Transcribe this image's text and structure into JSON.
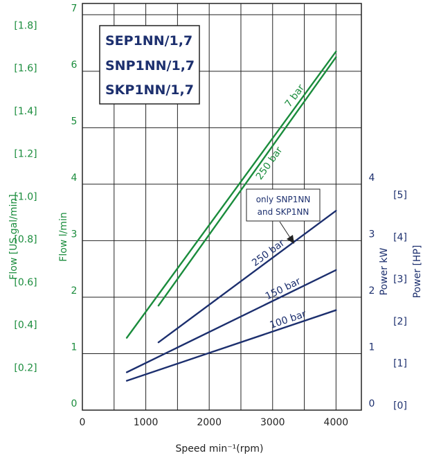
{
  "chart_data": {
    "type": "line",
    "title_lines": [
      "SEP1NN/1,7",
      "SNP1NN/1,7",
      "SKP1NN/1,7"
    ],
    "xlabel": "Speed min⁻¹(rpm)",
    "xlim": [
      0,
      4400
    ],
    "x_ticks": [
      "0",
      "1000",
      "2000",
      "3000",
      "4000"
    ],
    "flow_axis": {
      "label": "Flow  l/min",
      "ylim": [
        0,
        7.2
      ],
      "ticks": [
        "0",
        "1",
        "2",
        "3",
        "4",
        "5",
        "6",
        "7"
      ]
    },
    "flow_gal_axis": {
      "label": "Flow [US gal/min]",
      "ticks": [
        "[0.2]",
        "[0.4]",
        "[0.6]",
        "[0.8]",
        "[1.0]",
        "[1.2]",
        "[1.4]",
        "[1.6]",
        "[1.8]"
      ]
    },
    "power_axis": {
      "label": "Power  kW",
      "ylim": [
        0,
        7.2
      ],
      "ticks": [
        "0",
        "1",
        "2",
        "3",
        "4"
      ]
    },
    "power_hp_axis": {
      "label": "Power [HP]",
      "ticks": [
        "[0]",
        "[1]",
        "[2]",
        "[3]",
        "[4]",
        "[5]"
      ]
    },
    "grid": true,
    "series": [
      {
        "name": "7 bar",
        "axis": "flow",
        "color": "#1a8c3c",
        "x": [
          700,
          4000
        ],
        "y": [
          1.28,
          6.35
        ]
      },
      {
        "name": "250 bar",
        "axis": "flow",
        "color": "#1a8c3c",
        "x": [
          1200,
          4000
        ],
        "y": [
          1.85,
          6.25
        ]
      },
      {
        "name": "250 bar",
        "axis": "power",
        "color": "#1c2f6e",
        "x": [
          1200,
          4000
        ],
        "y": [
          1.2,
          3.53
        ]
      },
      {
        "name": "150 bar",
        "axis": "power",
        "color": "#1c2f6e",
        "x": [
          700,
          4000
        ],
        "y": [
          0.67,
          2.48
        ]
      },
      {
        "name": "100 bar",
        "axis": "power",
        "color": "#1c2f6e",
        "x": [
          700,
          4000
        ],
        "y": [
          0.52,
          1.77
        ]
      }
    ],
    "annotation": {
      "lines": [
        "only SNP1NN",
        "and SKP1NN"
      ]
    },
    "colors": {
      "flow": "#1a8c3c",
      "power": "#1c2f6e",
      "grid": "#222222"
    }
  }
}
